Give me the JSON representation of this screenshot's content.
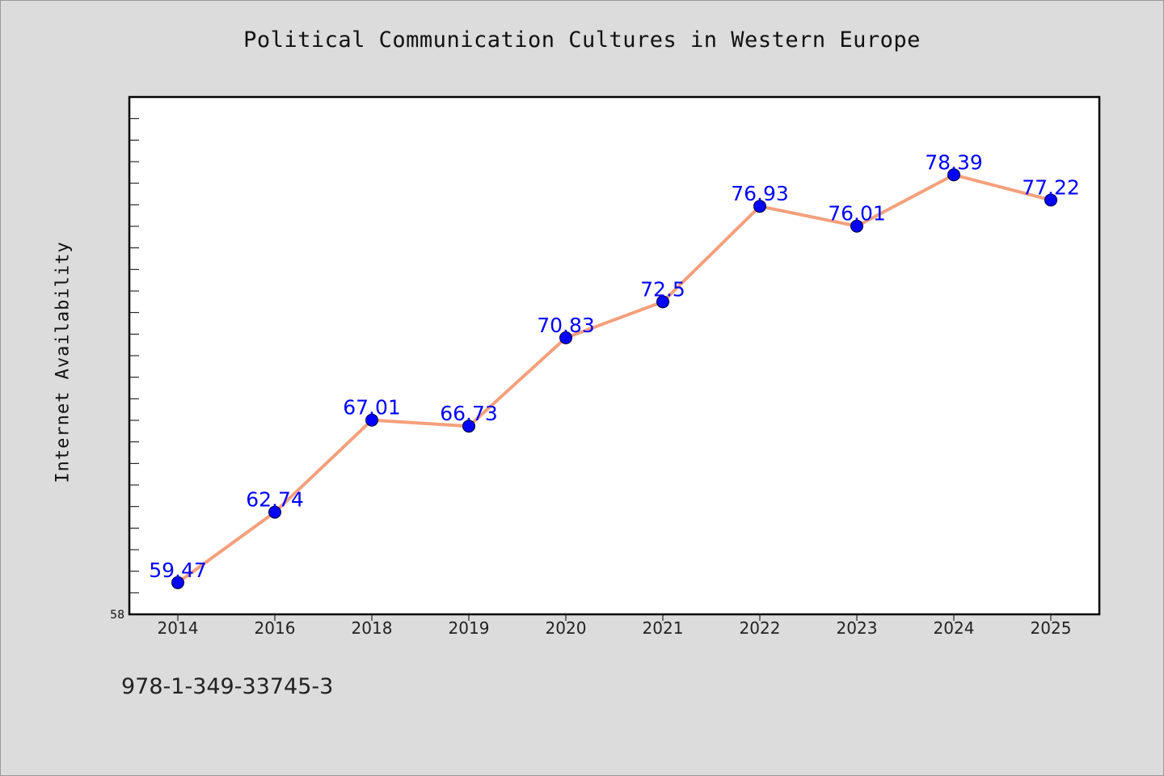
{
  "chart_data": {
    "type": "line",
    "title": "Political Communication Cultures in Western Europe",
    "xlabel": "",
    "ylabel": "Internet Availability",
    "categories": [
      "2014",
      "2016",
      "2018",
      "2019",
      "2020",
      "2021",
      "2022",
      "2023",
      "2024",
      "2025"
    ],
    "series": [
      {
        "values": [
          59.47,
          62.74,
          67.01,
          66.73,
          70.83,
          72.5,
          76.93,
          76.01,
          78.39,
          77.22
        ],
        "labels": [
          "59.47",
          "62.74",
          "67.01",
          "66.73",
          "70.83",
          "72.5",
          "76.93",
          "76.01",
          "78.39",
          "77.22"
        ]
      }
    ],
    "ylim": [
      58,
      82
    ],
    "y_tick_labels": [
      "58"
    ],
    "line_color": "#f4a07c",
    "marker_color": "#0000ff",
    "label_color": "#0000ff",
    "grid": false,
    "legend": "none"
  },
  "footer": {
    "isbn": "978-1-349-33745-3"
  }
}
